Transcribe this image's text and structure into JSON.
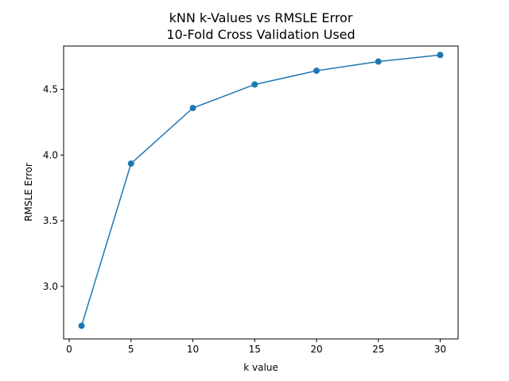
{
  "chart_data": {
    "type": "line",
    "title": "kNN k-Values vs RMSLE Error",
    "subtitle": "10-Fold Cross Validation Used",
    "xlabel": "k value",
    "ylabel": "RMSLE Error",
    "x": [
      1,
      5,
      10,
      15,
      20,
      25,
      30
    ],
    "series": [
      {
        "values": [
          2.7,
          3.935,
          4.358,
          4.537,
          4.642,
          4.712,
          4.762
        ]
      }
    ],
    "xlim": [
      -0.45,
      31.45
    ],
    "ylim": [
      2.6,
      4.83
    ],
    "xticks": [
      0,
      5,
      10,
      15,
      20,
      25,
      30
    ],
    "xtick_labels": [
      "0",
      "5",
      "10",
      "15",
      "20",
      "25",
      "30"
    ],
    "yticks": [
      3.0,
      3.5,
      4.0,
      4.5
    ],
    "ytick_labels": [
      "3.0",
      "3.5",
      "4.0",
      "4.5"
    ],
    "grid": false,
    "marker": "circle",
    "line_color": "#1f77b4"
  }
}
